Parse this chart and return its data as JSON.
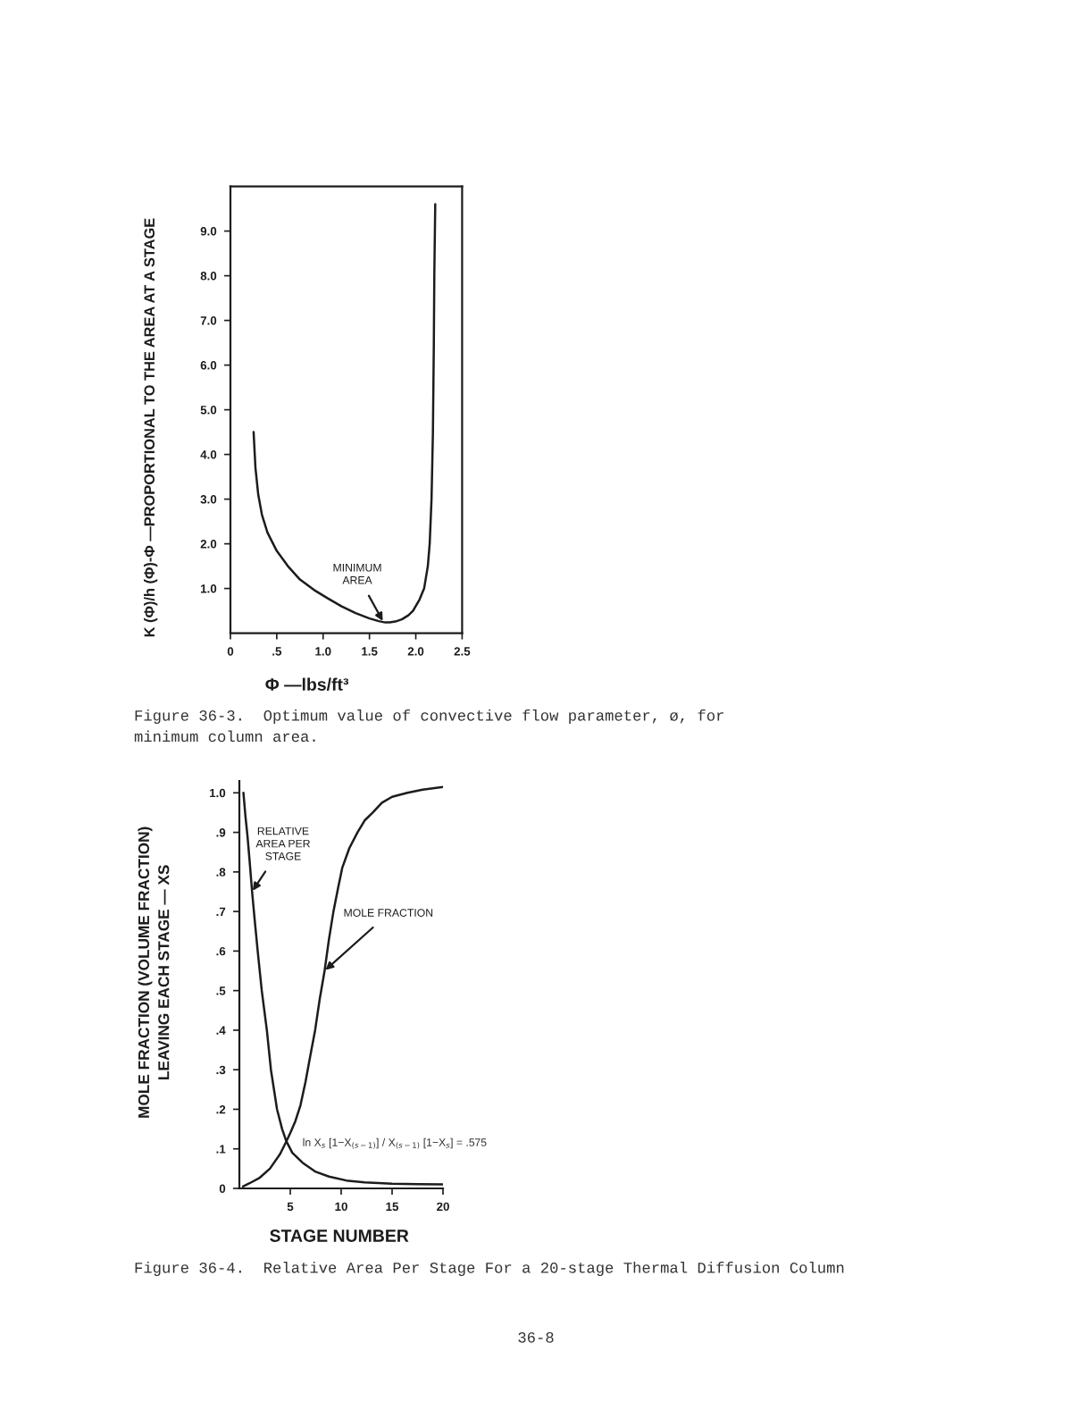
{
  "chart_data": [
    {
      "type": "line",
      "xlabel": "Φ —lbs/ft³",
      "ylabel": "K (Φ)/h (Φ)-Φ —PROPORTIONAL TO THE AREA AT A STAGE",
      "xlim": [
        0,
        2.5
      ],
      "ylim": [
        0,
        10
      ],
      "xticks": [
        {
          "value": 0,
          "label": "0"
        },
        {
          "value": 0.5,
          "label": ".5"
        },
        {
          "value": 1,
          "label": "1.0"
        },
        {
          "value": 1.5,
          "label": "1.5"
        },
        {
          "value": 2,
          "label": "2.0"
        },
        {
          "value": 2.5,
          "label": "2.5"
        }
      ],
      "yticks": [
        {
          "value": 1,
          "label": "1.0"
        },
        {
          "value": 2,
          "label": "2.0"
        },
        {
          "value": 3,
          "label": "3.0"
        },
        {
          "value": 4,
          "label": "4.0"
        },
        {
          "value": 5,
          "label": "5.0"
        },
        {
          "value": 6,
          "label": "6.0"
        },
        {
          "value": 7,
          "label": "7.0"
        },
        {
          "value": 8,
          "label": "8.0"
        },
        {
          "value": 9,
          "label": "9.0"
        }
      ],
      "series": [
        {
          "color": "#1c1c1c",
          "x": [
            0.25,
            0.27,
            0.3,
            0.34,
            0.4,
            0.5,
            0.62,
            0.75,
            0.9,
            1.05,
            1.2,
            1.35,
            1.5,
            1.6,
            1.67,
            1.72,
            1.78,
            1.85,
            1.92,
            1.97,
            2.04,
            2.09,
            2.13,
            2.15,
            2.17,
            2.185,
            2.195,
            2.2,
            2.21
          ],
          "values": [
            4.5,
            3.7,
            3.1,
            2.65,
            2.25,
            1.84,
            1.5,
            1.2,
            0.97,
            0.78,
            0.6,
            0.45,
            0.33,
            0.27,
            0.24,
            0.24,
            0.26,
            0.31,
            0.4,
            0.5,
            0.75,
            1.0,
            1.5,
            2.0,
            3.0,
            4.5,
            6.5,
            8.0,
            9.6
          ]
        }
      ],
      "annotations": [
        {
          "text": "MINIMUM\nAREA",
          "x": 1.65,
          "y": 0.25
        },
        "Figure 36-3.  Optimum value of convective flow parameter, ø, for\nminimum column area."
      ]
    },
    {
      "type": "line",
      "xlabel": "STAGE NUMBER",
      "ylabel": "MOLE FRACTION (VOLUME FRACTION)\nLEAVING EACH STAGE — XS",
      "xlim": [
        0,
        20
      ],
      "ylim": [
        0,
        1.03
      ],
      "xticks": [
        5,
        10,
        15,
        20
      ],
      "yticks": [
        {
          "value": 0,
          "label": "0"
        },
        {
          "value": 0.1,
          "label": ".1"
        },
        {
          "value": 0.2,
          "label": ".2"
        },
        {
          "value": 0.3,
          "label": ".3"
        },
        {
          "value": 0.4,
          "label": ".4"
        },
        {
          "value": 0.5,
          "label": ".5"
        },
        {
          "value": 0.6,
          "label": ".6"
        },
        {
          "value": 0.7,
          "label": ".7"
        },
        {
          "value": 0.8,
          "label": ".8"
        },
        {
          "value": 0.9,
          "label": ".9"
        },
        {
          "value": 1,
          "label": "1.0"
        }
      ],
      "series": [
        {
          "color": "#1c1c1c",
          "x": [
            0.4,
            0.6,
            0.8,
            1.0,
            1.25,
            1.5,
            1.8,
            2.2,
            2.7,
            3.1,
            3.7,
            4.2,
            4.6,
            5.2,
            6.2,
            7.5,
            8.8,
            10.5,
            12.3,
            15.0,
            17.5,
            20.0
          ],
          "values": [
            1.0,
            0.94,
            0.89,
            0.83,
            0.75,
            0.68,
            0.6,
            0.5,
            0.4,
            0.3,
            0.2,
            0.15,
            0.12,
            0.09,
            0.065,
            0.042,
            0.03,
            0.02,
            0.015,
            0.012,
            0.011,
            0.01
          ]
        },
        {
          "color": "#1c1c1c",
          "x": [
            0.35,
            1.0,
            2.0,
            3.0,
            4.0,
            4.6,
            5.0,
            5.5,
            6.0,
            6.5,
            7.0,
            7.44,
            7.9,
            8.37,
            8.8,
            9.24,
            9.7,
            10.1,
            10.8,
            11.6,
            12.3,
            13.1,
            14.0,
            15.0,
            16.5,
            18.0,
            20.0
          ],
          "values": [
            0.005,
            0.013,
            0.027,
            0.05,
            0.087,
            0.118,
            0.14,
            0.17,
            0.21,
            0.27,
            0.34,
            0.4,
            0.48,
            0.55,
            0.63,
            0.7,
            0.76,
            0.81,
            0.86,
            0.9,
            0.93,
            0.95,
            0.975,
            0.99,
            1.0,
            1.008,
            1.015
          ]
        }
      ],
      "annotations": [
        "ln X$_{s}$ [1−X$_{(s−1)}$] / X$_{(s−1)}$ [1−X$_{s}$] = .575",
        {
          "text": "RELATIVE\nAREA PER\nSTAGE",
          "x": 1.25,
          "y": 0.75
        },
        {
          "text": "MOLE FRACTION",
          "x": 8.37,
          "y": 0.55
        },
        "Figure 36-4.  Relative Area Per Stage For a 20-stage Thermal Diffusion Column",
        "36-8"
      ]
    }
  ]
}
